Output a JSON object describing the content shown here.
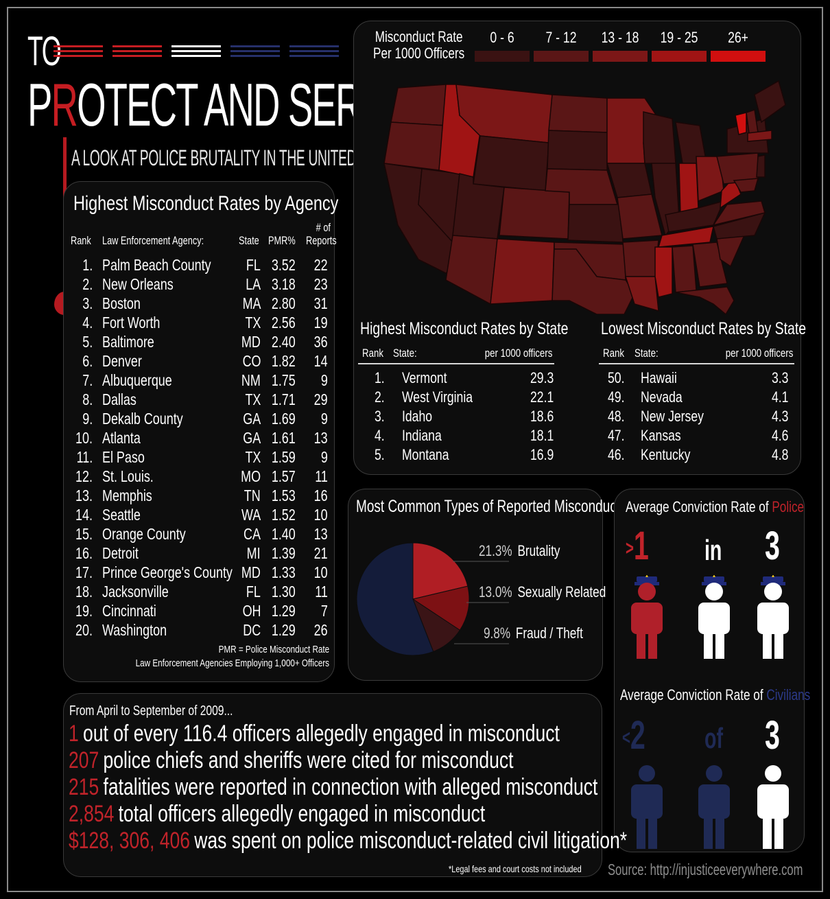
{
  "title": {
    "to": "TO",
    "main_p": "P",
    "main_r": "R",
    "main_rest": "OTECT AND SERVE?",
    "subtitle": "A LOOK AT POLICE BRUTALITY IN THE UNITED STATES"
  },
  "colors": {
    "accent_red": "#c51d22",
    "police_red": "#b0202a",
    "civilian_navy": "#1f2a55",
    "white": "#ffffff"
  },
  "agency_table": {
    "title": "Highest Misconduct Rates by Agency",
    "columns": {
      "rank": "Rank",
      "agency": "Law Enforcement Agency:",
      "state": "State",
      "pmr": "PMR%",
      "reports_line1": "# of",
      "reports_line2": "Reports"
    },
    "rows": [
      {
        "rank": "1.",
        "agency": "Palm Beach County",
        "state": "FL",
        "pmr": "3.52",
        "reports": "22"
      },
      {
        "rank": "2.",
        "agency": "New Orleans",
        "state": "LA",
        "pmr": "3.18",
        "reports": "23"
      },
      {
        "rank": "3.",
        "agency": "Boston",
        "state": "MA",
        "pmr": "2.80",
        "reports": "31"
      },
      {
        "rank": "4.",
        "agency": "Fort Worth",
        "state": "TX",
        "pmr": "2.56",
        "reports": "19"
      },
      {
        "rank": "5.",
        "agency": "Baltimore",
        "state": "MD",
        "pmr": "2.40",
        "reports": "36"
      },
      {
        "rank": "6.",
        "agency": "Denver",
        "state": "CO",
        "pmr": "1.82",
        "reports": "14"
      },
      {
        "rank": "7.",
        "agency": "Albuquerque",
        "state": "NM",
        "pmr": "1.75",
        "reports": "9"
      },
      {
        "rank": "8.",
        "agency": "Dallas",
        "state": "TX",
        "pmr": "1.71",
        "reports": "29"
      },
      {
        "rank": "9.",
        "agency": "Dekalb County",
        "state": "GA",
        "pmr": "1.69",
        "reports": "9"
      },
      {
        "rank": "10.",
        "agency": "Atlanta",
        "state": "GA",
        "pmr": "1.61",
        "reports": "13"
      },
      {
        "rank": "11.",
        "agency": "El Paso",
        "state": "TX",
        "pmr": "1.59",
        "reports": "9"
      },
      {
        "rank": "12.",
        "agency": "St. Louis.",
        "state": "MO",
        "pmr": "1.57",
        "reports": "11"
      },
      {
        "rank": "13.",
        "agency": "Memphis",
        "state": "TN",
        "pmr": "1.53",
        "reports": "16"
      },
      {
        "rank": "14.",
        "agency": "Seattle",
        "state": "WA",
        "pmr": "1.52",
        "reports": "10"
      },
      {
        "rank": "15.",
        "agency": "Orange County",
        "state": "CA",
        "pmr": "1.40",
        "reports": "13"
      },
      {
        "rank": "16.",
        "agency": "Detroit",
        "state": "MI",
        "pmr": "1.39",
        "reports": "21"
      },
      {
        "rank": "17.",
        "agency": "Prince George's County",
        "state": "MD",
        "pmr": "1.33",
        "reports": "10"
      },
      {
        "rank": "18.",
        "agency": "Jacksonville",
        "state": "FL",
        "pmr": "1.30",
        "reports": "11"
      },
      {
        "rank": "19.",
        "agency": "Cincinnati",
        "state": "OH",
        "pmr": "1.29",
        "reports": "7"
      },
      {
        "rank": "20.",
        "agency": "Washington",
        "state": "DC",
        "pmr": "1.29",
        "reports": "26"
      }
    ],
    "footnote1": "PMR = Police Misconduct Rate",
    "footnote2": "Law Enforcement Agencies Employing 1,000+ Officers"
  },
  "map_legend": {
    "title_line1": "Misconduct Rate",
    "title_line2": "Per 1000 Officers",
    "items": [
      {
        "label": "0 - 6",
        "color": "#3a1212"
      },
      {
        "label": "7 - 12",
        "color": "#5a1616"
      },
      {
        "label": "13 - 18",
        "color": "#7c1717"
      },
      {
        "label": "19 - 25",
        "color": "#a01414"
      },
      {
        "label": "26+",
        "color": "#d10f0f"
      }
    ]
  },
  "highest_states": {
    "title": "Highest Misconduct Rates by State",
    "col_rank": "Rank",
    "col_state": "State:",
    "col_rate": "per 1000 officers",
    "rows": [
      {
        "rank": "1.",
        "state": "Vermont",
        "rate": "29.3"
      },
      {
        "rank": "2.",
        "state": "West Virginia",
        "rate": "22.1"
      },
      {
        "rank": "3.",
        "state": "Idaho",
        "rate": "18.6"
      },
      {
        "rank": "4.",
        "state": "Indiana",
        "rate": "18.1"
      },
      {
        "rank": "5.",
        "state": "Montana",
        "rate": "16.9"
      }
    ]
  },
  "lowest_states": {
    "title": "Lowest Misconduct Rates by State",
    "col_rank": "Rank",
    "col_state": "State:",
    "col_rate": "per 1000 officers",
    "rows": [
      {
        "rank": "50.",
        "state": "Hawaii",
        "rate": "3.3"
      },
      {
        "rank": "49.",
        "state": "Nevada",
        "rate": "4.1"
      },
      {
        "rank": "48.",
        "state": "New Jersey",
        "rate": "4.3"
      },
      {
        "rank": "47.",
        "state": "Kansas",
        "rate": "4.6"
      },
      {
        "rank": "46.",
        "state": "Kentucky",
        "rate": "4.8"
      }
    ]
  },
  "misconduct_types": {
    "title": "Most Common Types of Reported Misconduct",
    "slices": [
      {
        "pct": "21.3%",
        "value": 21.3,
        "label": "Brutality",
        "color": "#b01e24"
      },
      {
        "pct": "13.0%",
        "value": 13.0,
        "label": "Sexually Related",
        "color": "#7d1114"
      },
      {
        "pct": "9.8%",
        "value": 9.8,
        "label": "Fraud / Theft",
        "color": "#3a1416"
      },
      {
        "pct": "",
        "value": 55.9,
        "label": "",
        "color": "#141c3a"
      }
    ]
  },
  "police_conviction": {
    "title_prefix": "Average Conviction Rate of ",
    "title_highlight": "Police",
    "gt": ">",
    "num1": "1",
    "word": "in",
    "num2": "3"
  },
  "civilian_conviction": {
    "title_prefix": "Average Conviction Rate of ",
    "title_highlight": "Civilians",
    "lt": "<",
    "num1": "2",
    "word": "of",
    "num2": "3"
  },
  "stats": {
    "intro": "From April to September of 2009...",
    "lines": [
      {
        "num": "1",
        "text": "out of every 116.4 officers allegedly engaged in misconduct"
      },
      {
        "num": "207",
        "text": "police chiefs and sheriffs were cited for misconduct"
      },
      {
        "num": "215",
        "text": "fatalities were reported in connection with alleged misconduct"
      },
      {
        "num": "2,854",
        "text": "total officers allegedly engaged in misconduct"
      },
      {
        "num": "$128, 306, 406",
        "text": "was spent on police misconduct-related civil litigation*"
      }
    ],
    "legal_note": "*Legal fees and court costs not included"
  },
  "source": "Source:  http://injusticeeverywhere.com"
}
